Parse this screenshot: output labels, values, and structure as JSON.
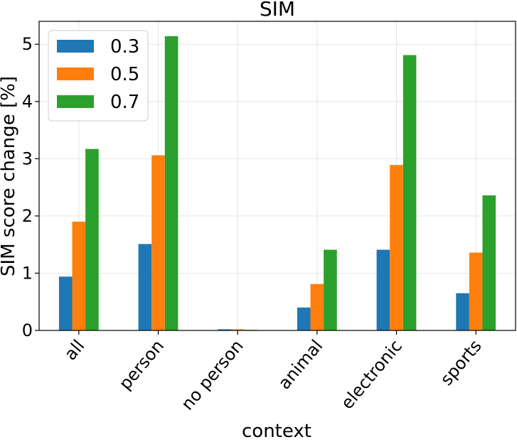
{
  "chart_data": {
    "type": "bar",
    "title": "SIM",
    "xlabel": "context",
    "ylabel": "SIM score change [%]",
    "categories": [
      "all",
      "person",
      "no person",
      "animal",
      "electronic",
      "sports"
    ],
    "series": [
      {
        "name": "0.3",
        "color": "#1f77b4",
        "values": [
          0.94,
          1.51,
          0.02,
          0.4,
          1.41,
          0.65
        ]
      },
      {
        "name": "0.5",
        "color": "#ff7f0e",
        "values": [
          1.9,
          3.06,
          0.02,
          0.81,
          2.89,
          1.36
        ]
      },
      {
        "name": "0.7",
        "color": "#2ca02c",
        "values": [
          3.17,
          5.14,
          0.01,
          1.41,
          4.81,
          2.36
        ]
      }
    ],
    "ylim": [
      0,
      5.4
    ],
    "yticks": [
      "0",
      "1",
      "2",
      "3",
      "4",
      "5"
    ],
    "grid": true,
    "legend_position": "top-left"
  }
}
